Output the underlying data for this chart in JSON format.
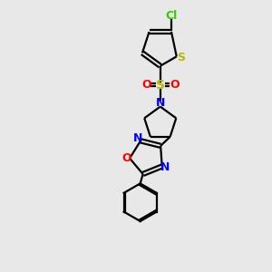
{
  "bg_color": "#e8e8e8",
  "bond_color": "#000000",
  "cl_color": "#33cc00",
  "s_color": "#b8b800",
  "n_color": "#0000ff",
  "o_color": "#ff0000",
  "line_width": 1.6,
  "fig_size": [
    3.0,
    3.0
  ],
  "dpi": 100,
  "xlim": [
    0,
    10
  ],
  "ylim": [
    0,
    10
  ]
}
